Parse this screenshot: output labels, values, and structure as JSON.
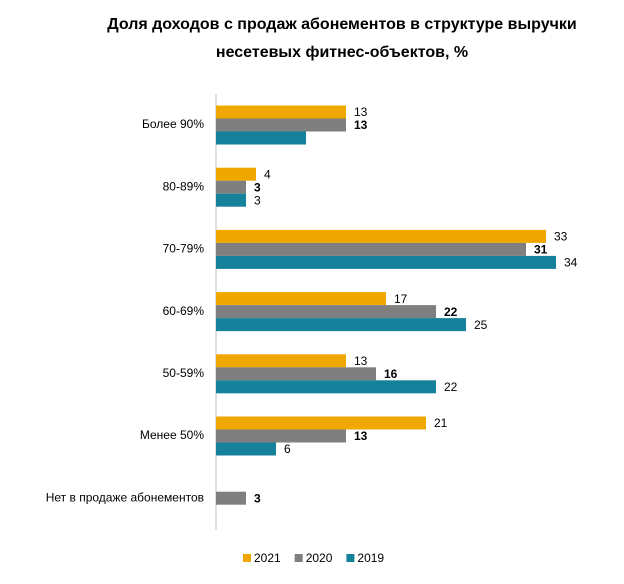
{
  "chart_data": {
    "type": "barh",
    "title": [
      "Доля доходов с продаж абонементов в структуре выручки",
      "несетевых фитнес-объектов, %"
    ],
    "categories": [
      "Более 90%",
      "80-89%",
      "70-79%",
      "60-69%",
      "50-59%",
      "Менее 50%",
      "Нет в продаже абонементов"
    ],
    "xlim": [
      0,
      37
    ],
    "legend": "bottom",
    "series": [
      {
        "name": "2021",
        "color": "#f0a800",
        "bold_labels": false,
        "values": [
          13,
          4,
          33,
          17,
          13,
          21,
          null
        ]
      },
      {
        "name": "2020",
        "color": "#7f7f7f",
        "bold_labels": true,
        "values": [
          13,
          3,
          31,
          22,
          16,
          13,
          3
        ]
      },
      {
        "name": "2019",
        "color": "#16819a",
        "bold_labels": false,
        "values": [
          9,
          3,
          34,
          25,
          22,
          6,
          null
        ],
        "value_labels": [
          null,
          "3",
          "34",
          "25",
          "22",
          "6",
          null
        ]
      }
    ]
  }
}
